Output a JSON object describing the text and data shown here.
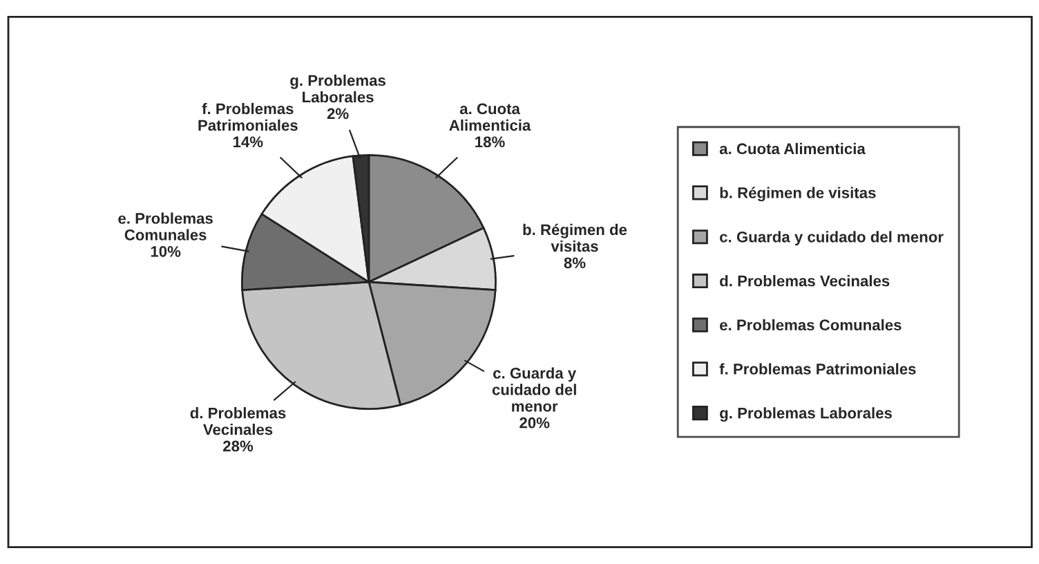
{
  "chart_data": {
    "type": "pie",
    "categories": [
      "a. Cuota Alimenticia",
      "b. Régimen de visitas",
      "c. Guarda y cuidado del menor",
      "d. Problemas Vecinales",
      "e. Problemas Comunales",
      "f. Problemas Patrimoniales",
      "g. Problemas Laborales"
    ],
    "values": [
      18,
      8,
      20,
      28,
      10,
      14,
      2
    ],
    "value_labels": [
      "18%",
      "8%",
      "20%",
      "28%",
      "10%",
      "14%",
      "2%"
    ],
    "colors": [
      "#8c8c8c",
      "#d9d9d9",
      "#a6a6a6",
      "#c4c4c4",
      "#6e6e6e",
      "#f0f0f0",
      "#333333"
    ],
    "legend": "right"
  }
}
